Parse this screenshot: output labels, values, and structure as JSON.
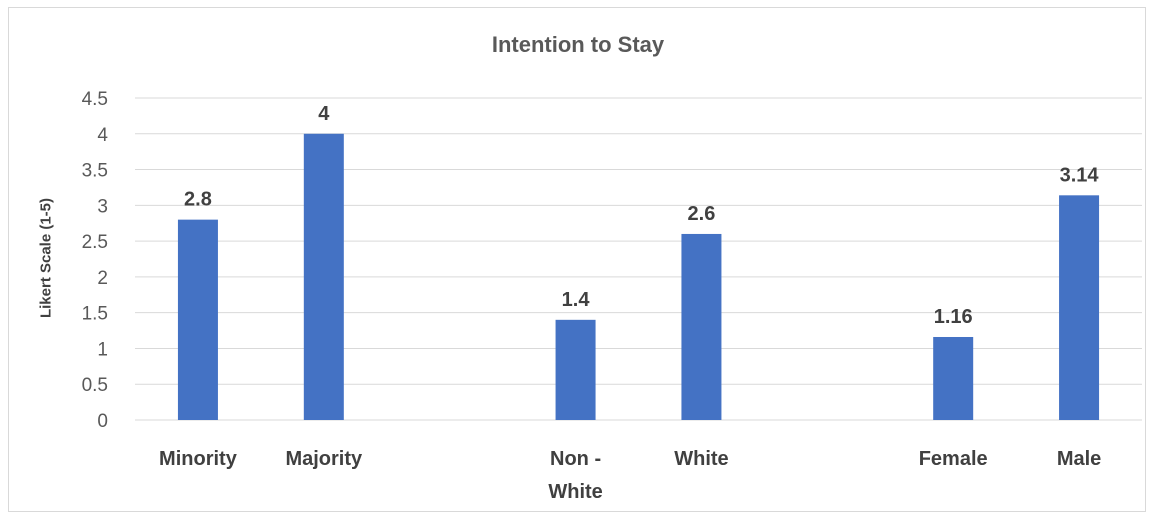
{
  "chart_data": {
    "type": "bar",
    "title": "Intention to Stay",
    "ylabel": "Likert Scale (1-5)",
    "xlabel": "",
    "ylim": [
      0,
      4.5
    ],
    "yticks": [
      "0",
      "0.5",
      "1",
      "1.5",
      "2",
      "2.5",
      "3",
      "3.5",
      "4",
      "4.5"
    ],
    "grid": true,
    "bar_color": "#4472C4",
    "groups": [
      {
        "categories": [
          [
            "Minority"
          ],
          [
            "Majority"
          ]
        ],
        "values": [
          2.8,
          4
        ],
        "labels": [
          "2.8",
          "4"
        ]
      },
      {
        "categories": [
          [
            "Non -",
            "White"
          ],
          [
            "White"
          ]
        ],
        "values": [
          1.4,
          2.6
        ],
        "labels": [
          "1.4",
          "2.6"
        ]
      },
      {
        "categories": [
          [
            "Female"
          ],
          [
            "Male"
          ]
        ],
        "values": [
          1.16,
          3.14
        ],
        "labels": [
          "1.16",
          "3.14"
        ]
      }
    ]
  }
}
